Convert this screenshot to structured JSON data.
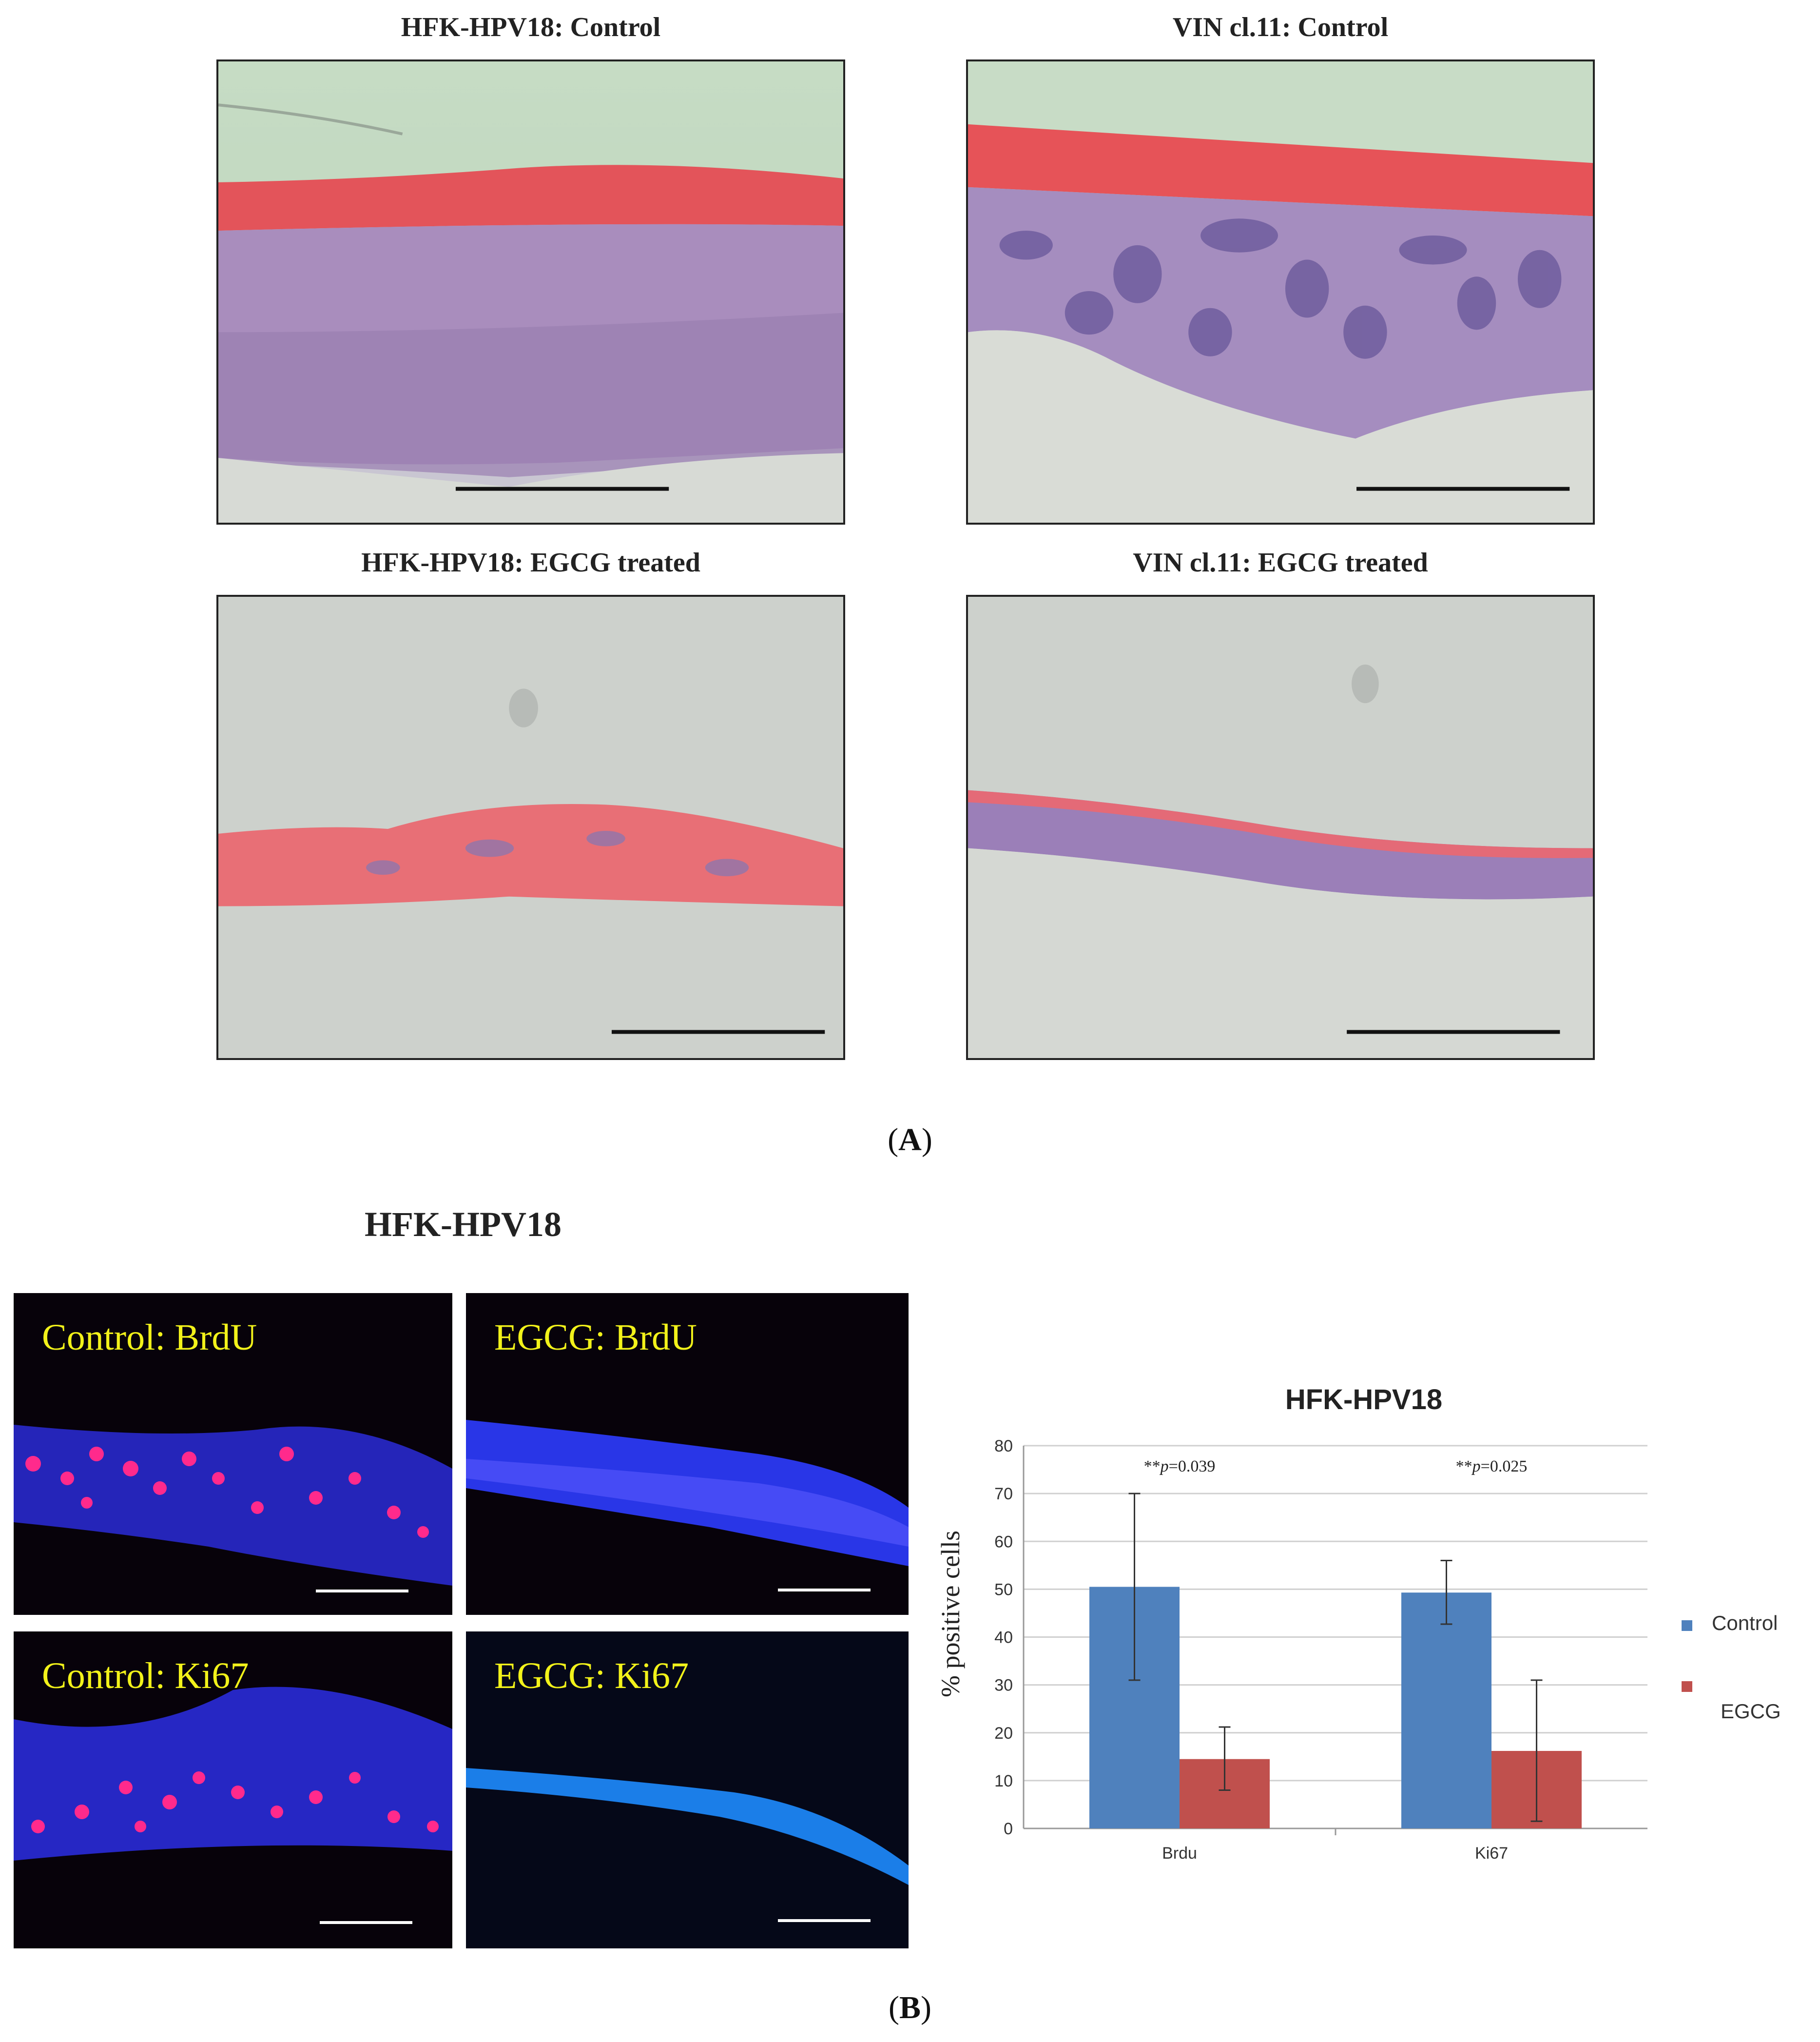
{
  "panel_a": {
    "titles": {
      "hfk_control": "HFK-HPV18: Control",
      "vin_control": "VIN cl.11: Control",
      "hfk_egcg": "HFK-HPV18: EGCG treated",
      "vin_egcg": "VIN cl.11: EGCG treated"
    },
    "caption_open": "(",
    "caption_letter": "A",
    "caption_close": ")"
  },
  "panel_b": {
    "heading": "HFK-HPV18",
    "fluo_labels": {
      "control_brdu": "Control: BrdU",
      "egcg_brdu": "EGCG: BrdU",
      "control_ki67": "Control: Ki67",
      "egcg_ki67": "EGCG: Ki67"
    },
    "caption_open": "(",
    "caption_letter": "B",
    "caption_close": ")"
  },
  "chart_data": {
    "type": "bar",
    "title": "HFK-HPV18",
    "ylabel": "% positive cells",
    "xlabel": "",
    "categories": [
      "Brdu",
      "Ki67"
    ],
    "ylim": [
      0,
      80
    ],
    "yticks": [
      0,
      10,
      20,
      30,
      40,
      50,
      60,
      70,
      80
    ],
    "grid": true,
    "legend_position": "right",
    "series": [
      {
        "name": "Control",
        "color": "#4f81bd",
        "values": [
          50.5,
          49.3
        ],
        "err_low": [
          31,
          42.7
        ],
        "err_high": [
          70,
          56
        ]
      },
      {
        "name": "EGCG",
        "color": "#c0504d",
        "values": [
          14.5,
          16.2
        ],
        "err_low": [
          8,
          1.5
        ],
        "err_high": [
          21.2,
          31
        ]
      }
    ],
    "annotations": [
      {
        "category": "Brdu",
        "stars": "**",
        "p_letter": "p",
        "value": "=0.039"
      },
      {
        "category": "Ki67",
        "stars": "**",
        "p_letter": "p",
        "value": "=0.025"
      }
    ]
  },
  "colors": {
    "eosin": "#e85a5e",
    "hematoxylin": "#8a6aa8",
    "background_green": "#c8dcc6",
    "background_grey": "#cdd0cc",
    "dapi_blue": "#2d3cff",
    "brdu_pink": "#ff2a8c",
    "label_yellow": "#f2f21a"
  }
}
